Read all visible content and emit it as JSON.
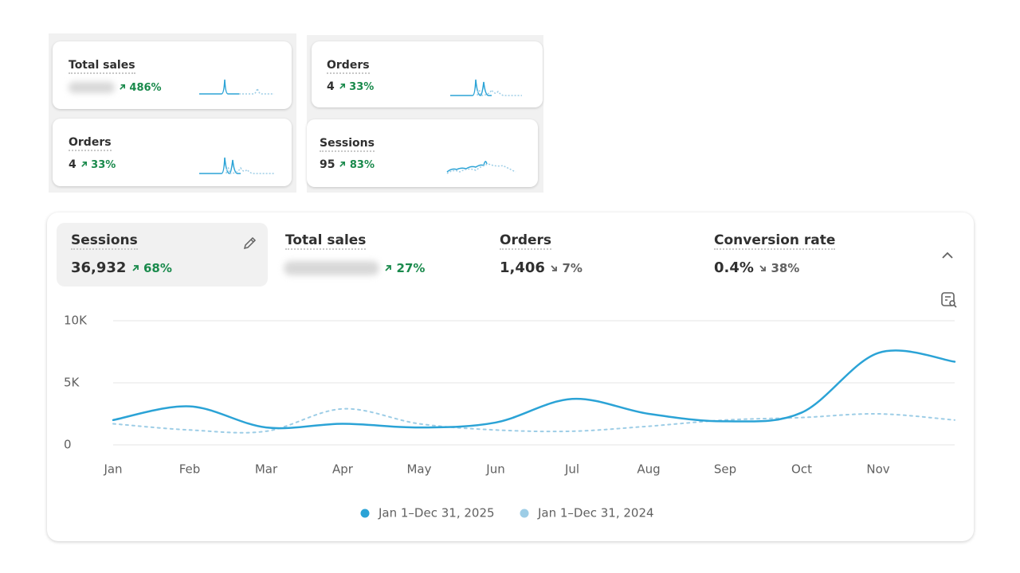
{
  "cards": [
    {
      "title": "Total sales",
      "change": "486%"
    },
    {
      "title": "Orders",
      "value": "4",
      "change": "33%"
    },
    {
      "title": "Orders",
      "value": "4",
      "change": "33%"
    },
    {
      "title": "Sessions",
      "value": "95",
      "change": "83%"
    }
  ],
  "tabs": [
    {
      "label": "Sessions",
      "value": "36,932",
      "change": "68%"
    },
    {
      "label": "Total sales",
      "change": "27%"
    },
    {
      "label": "Orders",
      "value": "1,406",
      "change": "7%"
    },
    {
      "label": "Conversion rate",
      "value": "0.4%",
      "change": "38%"
    }
  ],
  "chart_data": {
    "type": "line",
    "categories": [
      "Jan",
      "Feb",
      "Mar",
      "Apr",
      "May",
      "Jun",
      "Jul",
      "Aug",
      "Sep",
      "Oct",
      "Nov",
      null
    ],
    "series": [
      {
        "name": "Jan 1–Dec 31, 2025",
        "color": "#2ba3d6",
        "dashed": false,
        "values": [
          2000,
          3100,
          1400,
          1700,
          1400,
          1800,
          3700,
          2500,
          1900,
          2600,
          7400,
          6700
        ]
      },
      {
        "name": "Jan 1–Dec 31, 2024",
        "color": "#9dcde6",
        "dashed": true,
        "values": [
          1700,
          1200,
          1100,
          2900,
          1700,
          1200,
          1100,
          1500,
          2000,
          2200,
          2500,
          2000
        ]
      }
    ],
    "ylim": [
      0,
      10000
    ],
    "yticks": [
      0,
      {
        "value": 5000,
        "label": "5K"
      },
      {
        "value": 10000,
        "label": "10K"
      }
    ],
    "grid": true
  }
}
